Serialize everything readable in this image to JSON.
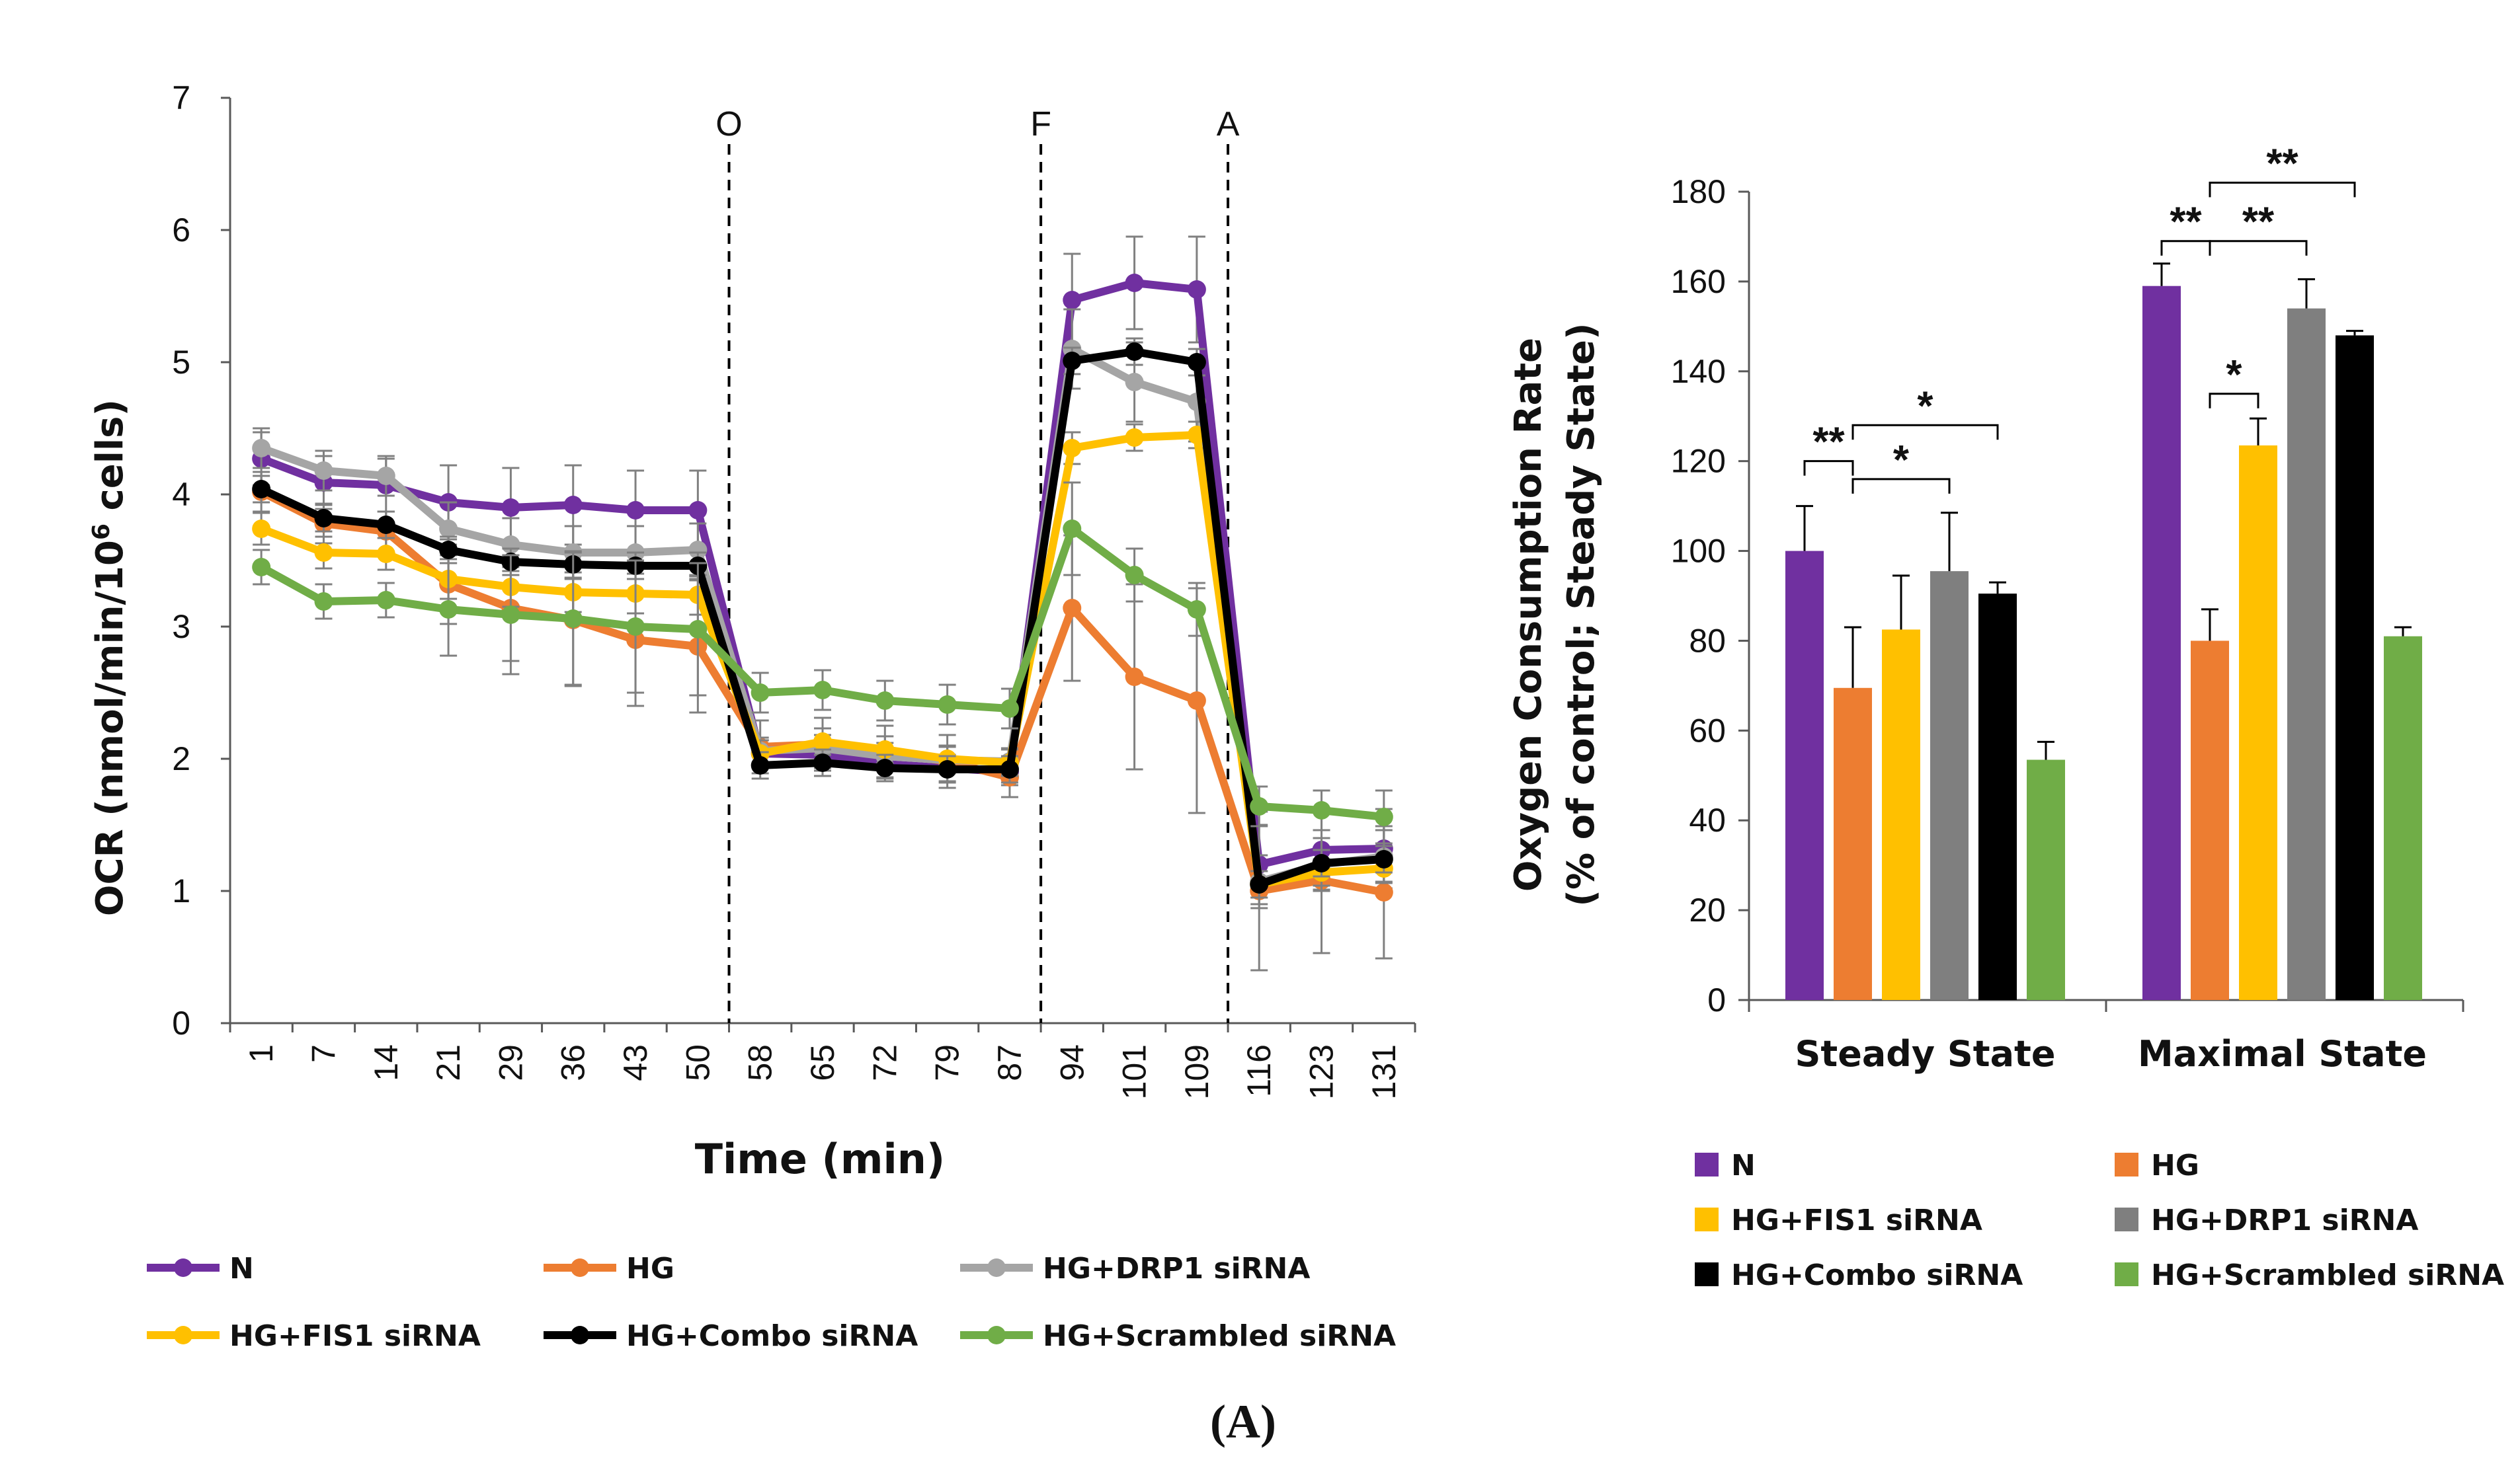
{
  "caption": "(A)",
  "colors": {
    "N": "#7030a0",
    "HG": "#ed7d31",
    "HG+DRP1 siRNA": "#a5a5a5",
    "HG+DRP1 siRNA bar": "#7f7f7f",
    "HG+FIS1 siRNA": "#ffc000",
    "HG+Combo siRNA": "#000000",
    "HG+Scrambled siRNA": "#70ad47"
  },
  "chart_data": [
    {
      "type": "line",
      "xlabel": "Time (min)",
      "ylabel_prefix": "OCR (nmol/min/10",
      "ylabel_sup": "6",
      "ylabel_suffix": " cells)",
      "categories": [
        "1",
        "7",
        "14",
        "21",
        "29",
        "36",
        "43",
        "50",
        "58",
        "65",
        "72",
        "79",
        "87",
        "94",
        "101",
        "109",
        "116",
        "123",
        "131"
      ],
      "ylim": [
        0,
        7
      ],
      "yticks": [
        "0",
        "1",
        "2",
        "3",
        "4",
        "5",
        "6",
        "7"
      ],
      "markers": [
        {
          "label": "O",
          "after_index": 7
        },
        {
          "label": "F",
          "after_index": 12
        },
        {
          "label": "A",
          "after_index": 15
        }
      ],
      "series": [
        {
          "name": "N",
          "values": [
            4.27,
            4.09,
            4.07,
            3.94,
            3.9,
            3.92,
            3.88,
            3.88,
            2.04,
            2.03,
            1.96,
            1.93,
            1.9,
            5.47,
            5.6,
            5.55,
            1.2,
            1.31,
            1.32
          ],
          "errors": [
            0.2,
            0.2,
            0.2,
            0.28,
            0.3,
            0.3,
            0.3,
            0.3,
            0.1,
            0.1,
            0.1,
            0.1,
            0.1,
            0.35,
            0.35,
            0.4,
            0.3,
            0.3,
            0.3
          ]
        },
        {
          "name": "HG",
          "values": [
            4.02,
            3.78,
            3.72,
            3.32,
            3.14,
            3.05,
            2.9,
            2.85,
            2.09,
            2.11,
            2.05,
            1.98,
            1.86,
            3.14,
            2.62,
            2.44,
            1.0,
            1.08,
            0.99
          ],
          "errors": [
            0.15,
            0.15,
            0.15,
            0.3,
            0.4,
            0.5,
            0.5,
            0.5,
            0.2,
            0.2,
            0.2,
            0.2,
            0.15,
            0.55,
            0.7,
            0.85,
            0.6,
            0.55,
            0.5
          ]
        },
        {
          "name": "HG+DRP1 siRNA",
          "values": [
            4.35,
            4.18,
            4.14,
            3.74,
            3.62,
            3.56,
            3.56,
            3.58,
            2.06,
            2.08,
            2.02,
            1.99,
            1.98,
            5.1,
            4.85,
            4.7,
            1.07,
            1.2,
            1.26
          ],
          "errors": [
            0.15,
            0.15,
            0.15,
            0.2,
            0.2,
            0.2,
            0.2,
            0.2,
            0.1,
            0.1,
            0.1,
            0.1,
            0.1,
            0.3,
            0.3,
            0.3,
            0.2,
            0.2,
            0.2
          ]
        },
        {
          "name": "HG+FIS1 siRNA",
          "values": [
            3.74,
            3.56,
            3.55,
            3.36,
            3.3,
            3.26,
            3.25,
            3.24,
            2.04,
            2.13,
            2.07,
            2.0,
            1.97,
            4.35,
            4.43,
            4.45,
            1.05,
            1.14,
            1.17
          ],
          "errors": [
            0.12,
            0.12,
            0.12,
            0.15,
            0.15,
            0.15,
            0.15,
            0.15,
            0.1,
            0.1,
            0.1,
            0.1,
            0.1,
            0.12,
            0.1,
            0.1,
            0.1,
            0.1,
            0.1
          ]
        },
        {
          "name": "HG+Combo siRNA",
          "values": [
            4.04,
            3.82,
            3.77,
            3.58,
            3.49,
            3.47,
            3.46,
            3.46,
            1.95,
            1.97,
            1.93,
            1.92,
            1.92,
            5.01,
            5.08,
            5.0,
            1.05,
            1.21,
            1.24
          ],
          "errors": [
            0.1,
            0.1,
            0.1,
            0.1,
            0.1,
            0.1,
            0.1,
            0.1,
            0.1,
            0.1,
            0.1,
            0.1,
            0.1,
            0.1,
            0.1,
            0.1,
            0.1,
            0.1,
            0.1
          ]
        },
        {
          "name": "HG+Scrambled siRNA",
          "values": [
            3.45,
            3.19,
            3.2,
            3.13,
            3.09,
            3.06,
            3.0,
            2.98,
            2.5,
            2.52,
            2.44,
            2.41,
            2.38,
            3.74,
            3.39,
            3.13,
            1.64,
            1.61,
            1.56
          ],
          "errors": [
            0.13,
            0.13,
            0.13,
            0.35,
            0.45,
            0.5,
            0.5,
            0.5,
            0.15,
            0.15,
            0.15,
            0.15,
            0.15,
            0.35,
            0.2,
            0.2,
            0.15,
            0.15,
            0.2
          ]
        }
      ],
      "legend": {
        "placement": "bottom",
        "rows": [
          [
            "N",
            "HG",
            "HG+DRP1 siRNA"
          ],
          [
            "HG+FIS1 siRNA",
            "HG+Combo siRNA",
            "HG+Scrambled siRNA"
          ]
        ]
      }
    },
    {
      "type": "bar",
      "ylabel_line1": "Oxygen Consumption Rate",
      "ylabel_line2": "(% of control; Steady State)",
      "categories": [
        "Steady State",
        "Maximal State"
      ],
      "ylim": [
        0,
        180
      ],
      "yticks": [
        "0",
        "20",
        "40",
        "60",
        "80",
        "100",
        "120",
        "140",
        "160",
        "180"
      ],
      "series": [
        {
          "name": "N",
          "values": [
            100,
            159
          ],
          "errors": [
            10,
            5
          ]
        },
        {
          "name": "HG",
          "values": [
            69.5,
            80
          ],
          "errors": [
            13.5,
            7
          ]
        },
        {
          "name": "HG+FIS1 siRNA",
          "values": [
            82.5,
            123.5
          ],
          "errors": [
            12,
            6
          ]
        },
        {
          "name": "HG+DRP1 siRNA",
          "values": [
            95.5,
            154
          ],
          "errors": [
            13,
            6.5
          ]
        },
        {
          "name": "HG+Combo siRNA",
          "values": [
            90.5,
            148
          ],
          "errors": [
            2.5,
            1
          ]
        },
        {
          "name": "HG+Scrambled siRNA",
          "values": [
            53.5,
            81
          ],
          "errors": [
            4,
            2
          ]
        }
      ],
      "significance": [
        {
          "category": 0,
          "from": 0,
          "to": 1,
          "label": "**",
          "level": 120
        },
        {
          "category": 0,
          "from": 1,
          "to": 3,
          "label": "*",
          "level": 116
        },
        {
          "category": 0,
          "from": 1,
          "to": 4,
          "label": "*",
          "level": 128
        },
        {
          "category": 1,
          "from": 0,
          "to": 1,
          "label": "**",
          "level": 169
        },
        {
          "category": 1,
          "from": 1,
          "to": 3,
          "label": "**",
          "level": 169
        },
        {
          "category": 1,
          "from": 1,
          "to": 4,
          "label": "**",
          "level": 182
        },
        {
          "category": 1,
          "from": 1,
          "to": 2,
          "label": "*",
          "level": 135
        }
      ],
      "legend": {
        "placement": "bottom",
        "rows": [
          [
            "N",
            "HG"
          ],
          [
            "HG+FIS1 siRNA",
            "HG+DRP1 siRNA"
          ],
          [
            "HG+Combo siRNA",
            "HG+Scrambled siRNA"
          ]
        ]
      }
    }
  ]
}
